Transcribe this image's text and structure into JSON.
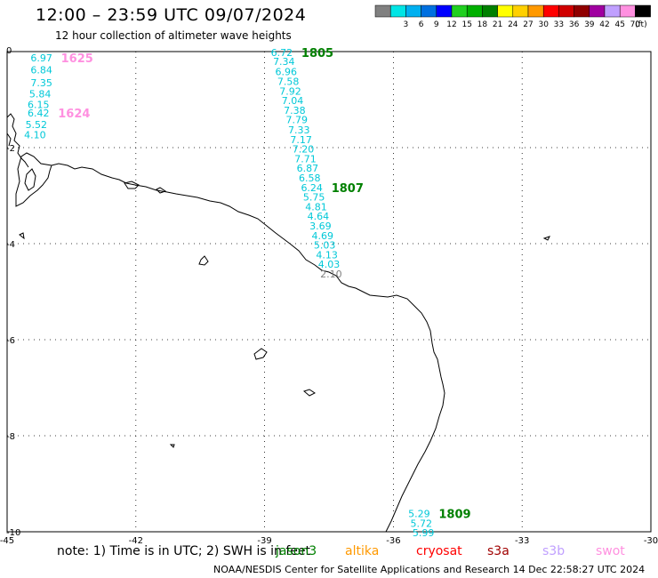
{
  "header": {
    "title": "12:00 – 23:59 UTC 09/07/2024",
    "subtitle": "12 hour collection of altimeter wave heights"
  },
  "legend": {
    "unit": "(ft)",
    "bins": [
      {
        "label": "",
        "color": "#808080"
      },
      {
        "label": "3",
        "color": "#00e5e5"
      },
      {
        "label": "6",
        "color": "#00b0f0"
      },
      {
        "label": "9",
        "color": "#0070e0"
      },
      {
        "label": "12",
        "color": "#0000ff"
      },
      {
        "label": "15",
        "color": "#20d020"
      },
      {
        "label": "18",
        "color": "#00b000"
      },
      {
        "label": "21",
        "color": "#008000"
      },
      {
        "label": "24",
        "color": "#ffff00"
      },
      {
        "label": "27",
        "color": "#ffd000"
      },
      {
        "label": "30",
        "color": "#ff9900"
      },
      {
        "label": "33",
        "color": "#ff0000"
      },
      {
        "label": "36",
        "color": "#d00000"
      },
      {
        "label": "39",
        "color": "#900000"
      },
      {
        "label": "42",
        "color": "#a000a0"
      },
      {
        "label": "45",
        "color": "#c0a0ff"
      },
      {
        "label": "70",
        "color": "#ff90e0"
      },
      {
        "label": "",
        "color": "#000000"
      }
    ]
  },
  "map": {
    "lon_ticks": [
      "-45",
      "-42",
      "-39",
      "-36",
      "-33",
      "-30"
    ],
    "lat_ticks": [
      "0",
      "-2",
      "-4",
      "-6",
      "-8",
      "-10"
    ],
    "lon_range": [
      -45,
      -30
    ],
    "lat_range": [
      -10,
      0
    ]
  },
  "tracks": [
    {
      "time_label": "1625",
      "time_color": "#ff90e0",
      "points": [
        {
          "lon": -44.2,
          "lat": -0.13,
          "v": "6.97"
        },
        {
          "lon": -44.2,
          "lat": -0.38,
          "v": "6.84"
        },
        {
          "lon": -44.2,
          "lat": -0.65,
          "v": "7.35"
        },
        {
          "lon": -44.23,
          "lat": -0.88,
          "v": "5.84"
        },
        {
          "lon": -44.27,
          "lat": -1.1,
          "v": "6.15"
        }
      ]
    },
    {
      "time_label": "1624",
      "time_color": "#ff90e0",
      "points": [
        {
          "lon": -44.27,
          "lat": -1.28,
          "v": "6.42"
        },
        {
          "lon": -44.32,
          "lat": -1.52,
          "v": "5.52"
        },
        {
          "lon": -44.35,
          "lat": -1.73,
          "v": "4.10"
        }
      ]
    },
    {
      "time_label": "1805",
      "time_color": "#008000",
      "points": [
        {
          "lon": -38.6,
          "lat": -0.02,
          "v": "6.72"
        },
        {
          "lon": -38.55,
          "lat": -0.2,
          "v": "7.34"
        },
        {
          "lon": -38.5,
          "lat": -0.42,
          "v": "6.96"
        },
        {
          "lon": -38.45,
          "lat": -0.62,
          "v": "7.58"
        },
        {
          "lon": -38.4,
          "lat": -0.82,
          "v": "7.92"
        },
        {
          "lon": -38.35,
          "lat": -1.02,
          "v": "7.04"
        },
        {
          "lon": -38.3,
          "lat": -1.22,
          "v": "7.38"
        },
        {
          "lon": -38.25,
          "lat": -1.42,
          "v": "7.79"
        },
        {
          "lon": -38.2,
          "lat": -1.63,
          "v": "7.33"
        },
        {
          "lon": -38.15,
          "lat": -1.83,
          "v": "7.17"
        },
        {
          "lon": -38.1,
          "lat": -2.03,
          "v": "7.20"
        },
        {
          "lon": -38.05,
          "lat": -2.23,
          "v": "7.71"
        },
        {
          "lon": -38.0,
          "lat": -2.43,
          "v": "6.87"
        },
        {
          "lon": -37.95,
          "lat": -2.63,
          "v": "6.58"
        }
      ]
    },
    {
      "time_label": "1807",
      "time_color": "#008000",
      "points": [
        {
          "lon": -37.9,
          "lat": -2.83,
          "v": "6.24"
        },
        {
          "lon": -37.85,
          "lat": -3.03,
          "v": "5.75"
        },
        {
          "lon": -37.8,
          "lat": -3.23,
          "v": "4.81"
        },
        {
          "lon": -37.75,
          "lat": -3.43,
          "v": "4.64"
        },
        {
          "lon": -37.7,
          "lat": -3.63,
          "v": "3.69"
        },
        {
          "lon": -37.65,
          "lat": -3.83,
          "v": "4.69"
        },
        {
          "lon": -37.6,
          "lat": -4.03,
          "v": "5.03"
        },
        {
          "lon": -37.55,
          "lat": -4.23,
          "v": "4.13"
        },
        {
          "lon": -37.5,
          "lat": -4.43,
          "v": "4.03"
        },
        {
          "lon": -37.45,
          "lat": -4.63,
          "v": "2.10",
          "gray": true
        }
      ]
    },
    {
      "time_label": "1809",
      "time_color": "#008000",
      "points": [
        {
          "lon": -35.4,
          "lat": -9.62,
          "v": "5.29"
        },
        {
          "lon": -35.35,
          "lat": -9.82,
          "v": "5.72"
        },
        {
          "lon": -35.3,
          "lat": -10.02,
          "v": "5.99"
        }
      ]
    }
  ],
  "note": {
    "prefix": "note:  1) Time is in UTC;  2) SWH is in feet",
    "missions": [
      {
        "name": "jason3",
        "color": "#008000"
      },
      {
        "name": "altika",
        "color": "#ff9900"
      },
      {
        "name": "cryosat",
        "color": "#ff0000"
      },
      {
        "name": "s3a",
        "color": "#a00000"
      },
      {
        "name": "s3b",
        "color": "#c0a0ff"
      },
      {
        "name": "swot",
        "color": "#ff90e0"
      }
    ]
  },
  "footer": "NOAA/NESDIS Center for Satellite Applications and Research    14 Dec 22:58:27 UTC 2024"
}
